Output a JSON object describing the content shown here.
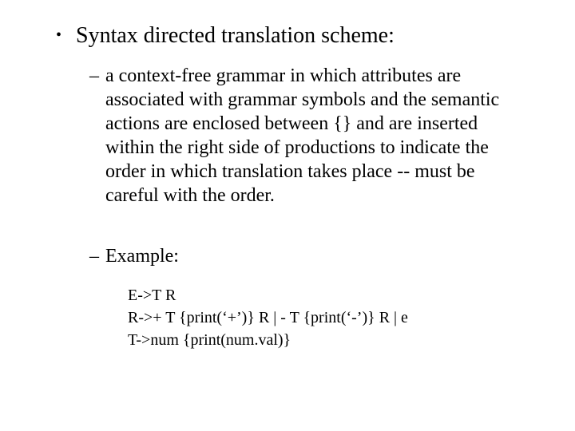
{
  "heading": "Syntax directed translation scheme:",
  "definition": "a context-free grammar in which attributes are associated with grammar symbols and the semantic actions are enclosed between {} and are inserted within the right side of productions to indicate the order in which translation takes place -- must be careful with the order.",
  "example_label": "Example:",
  "code": {
    "line1": "E->T R",
    "line2": "R->+ T {print(‘+’)} R | - T {print(‘-’)} R | e",
    "line3": "T->num {print(num.val)}"
  },
  "colors": {
    "background": "#ffffff",
    "text": "#000000"
  },
  "fonts": {
    "family": "Times New Roman",
    "heading_size_pt": 28,
    "body_size_pt": 24,
    "code_size_pt": 20
  }
}
